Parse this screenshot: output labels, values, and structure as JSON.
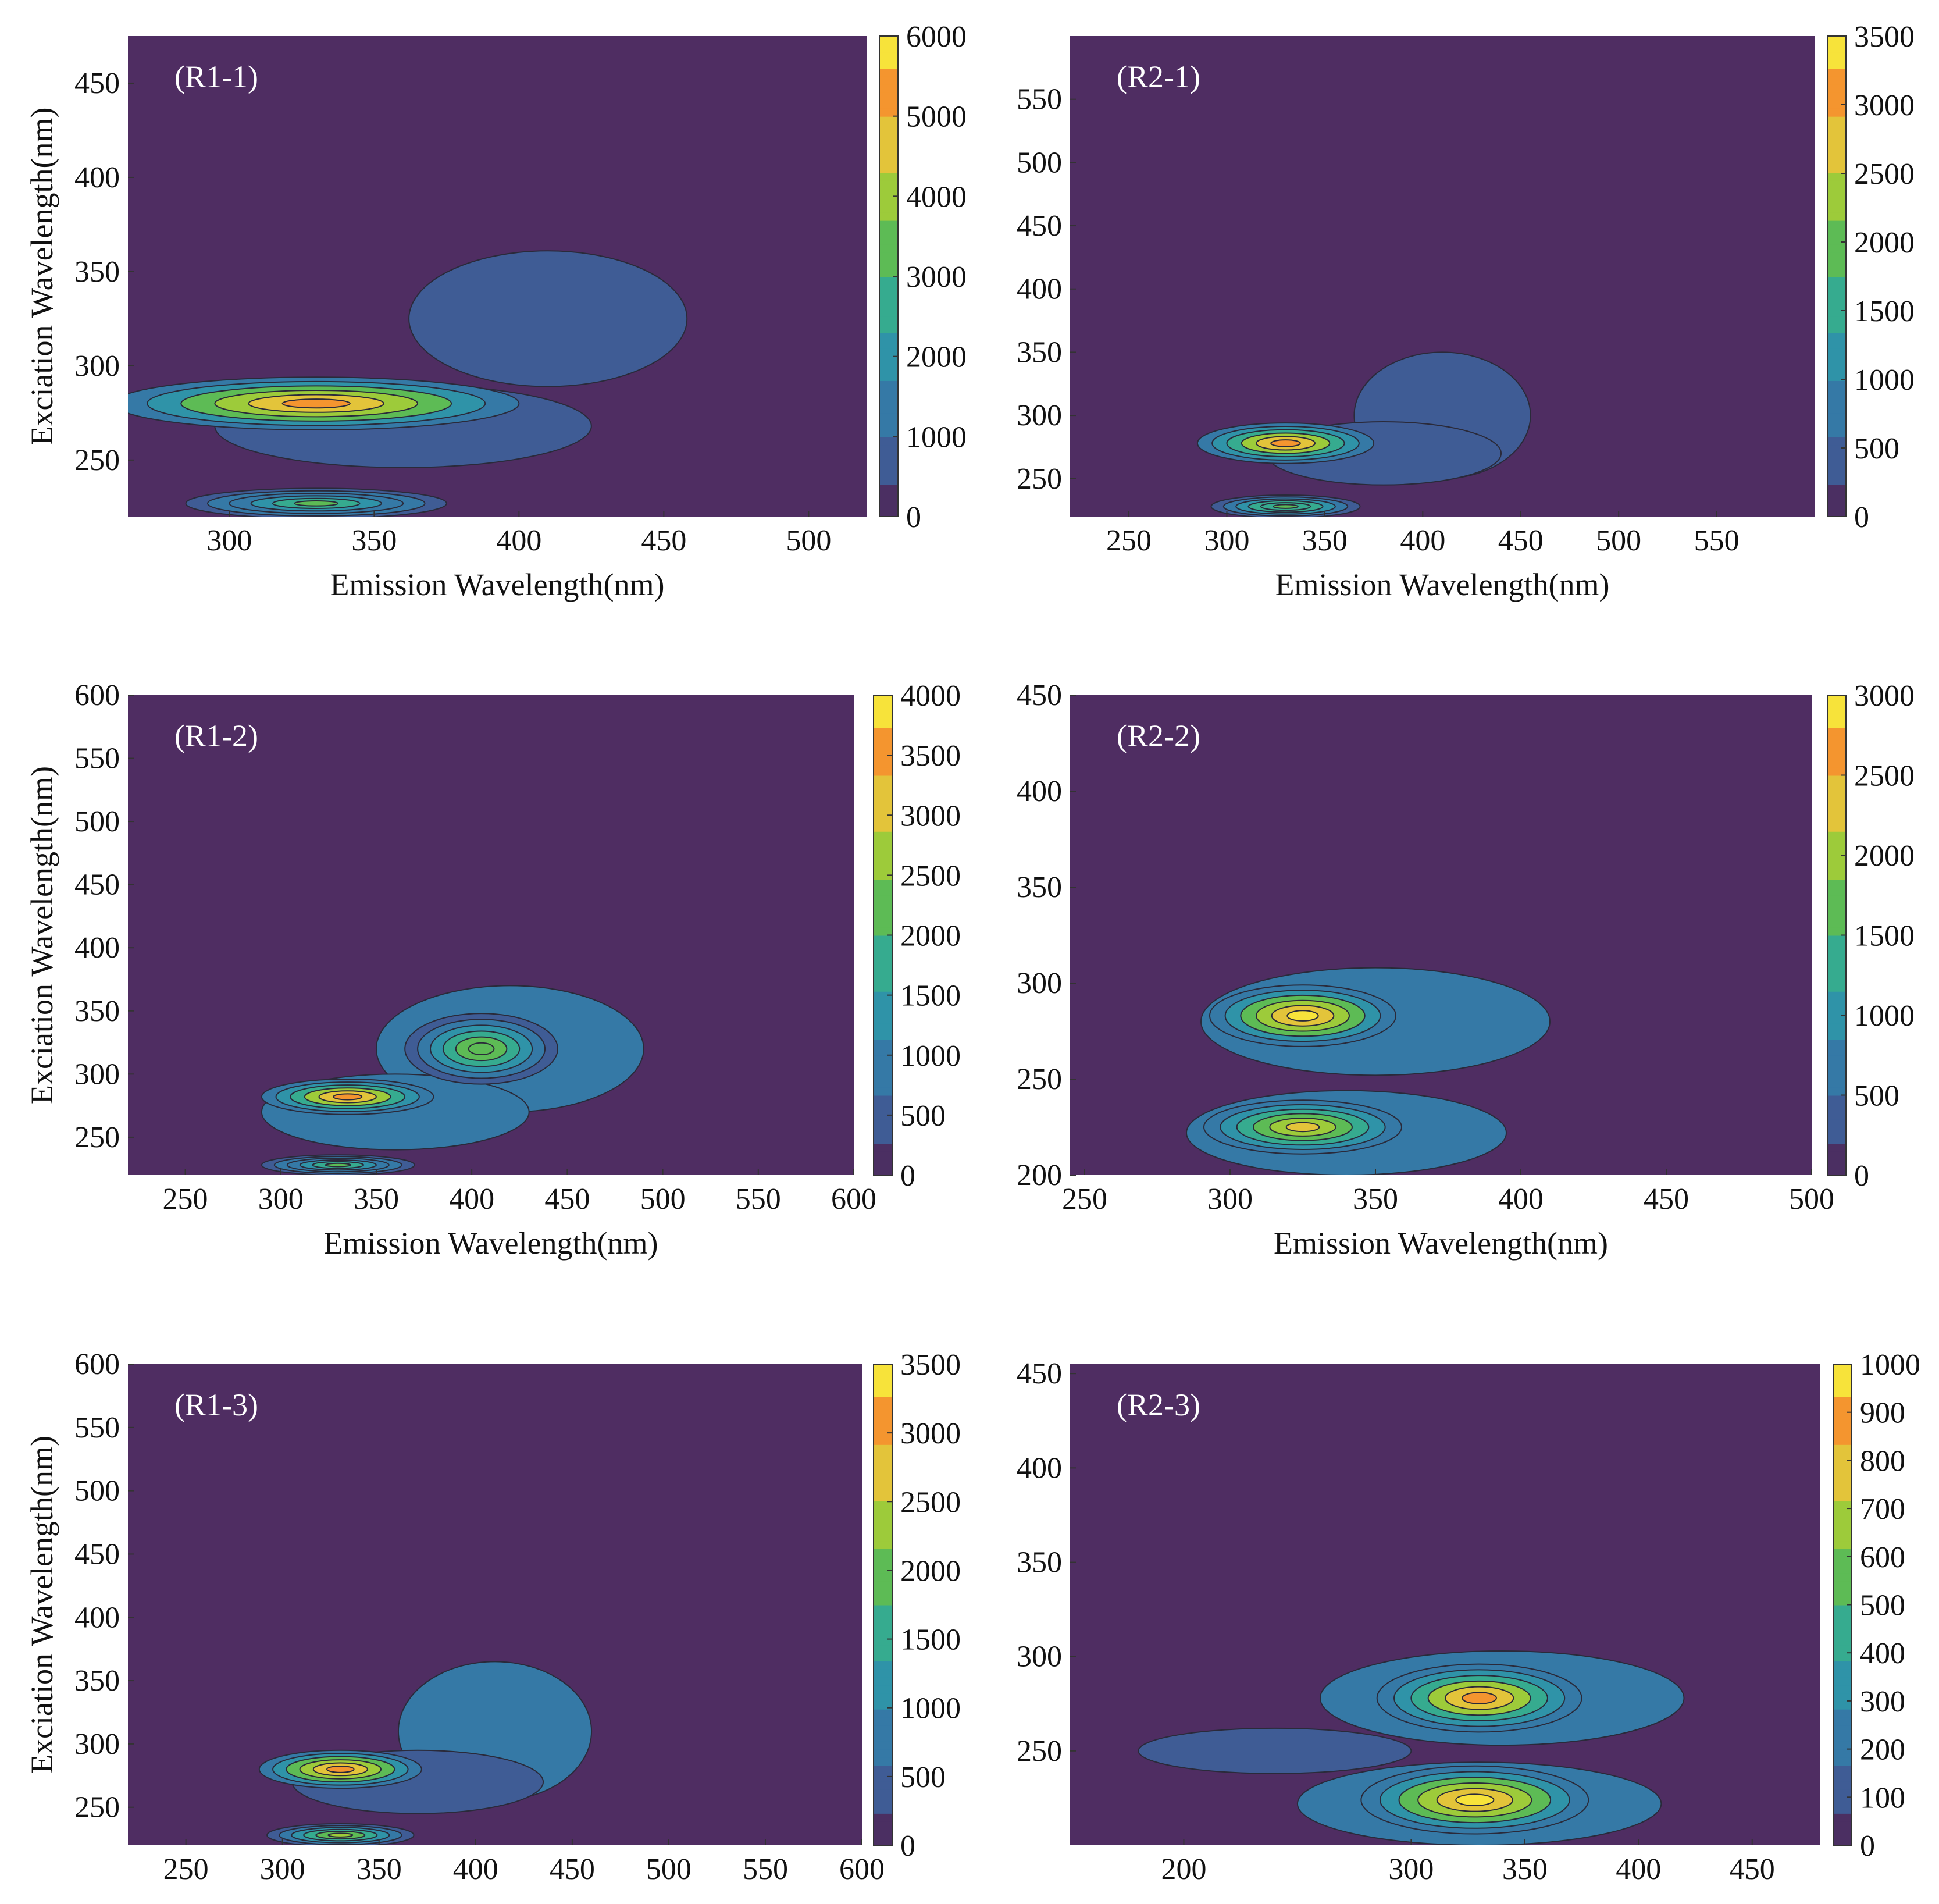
{
  "figure": {
    "colors": {
      "background": "#4f2d62",
      "colormap": [
        "#4b2f62",
        "#3f5c95",
        "#3579a6",
        "#2f93a8",
        "#36ab8f",
        "#5dbb55",
        "#9dcb3a",
        "#e3c43a",
        "#f4952f",
        "#f7e33a"
      ]
    }
  },
  "chart_data": [
    {
      "type": "heatmap",
      "subtype": "contour",
      "panel_label": "(R1-1)",
      "xlabel": "Emission Wavelength(nm)",
      "ylabel": "Exciation Wavelength(nm)",
      "xlim": [
        265,
        520
      ],
      "ylim": [
        220,
        475
      ],
      "xticks": [
        300,
        350,
        400,
        450,
        500
      ],
      "yticks": [
        250,
        300,
        350,
        400,
        450
      ],
      "colorbar": {
        "min": 0,
        "max": 6000,
        "ticks": [
          0,
          1000,
          2000,
          3000,
          4000,
          5000,
          6000
        ]
      },
      "peaks": [
        {
          "em": 330,
          "ex": 280,
          "intensity": 5600,
          "rx": 70,
          "ry": 14
        },
        {
          "em": 330,
          "ex": 227,
          "intensity": 3000,
          "rx": 45,
          "ry": 8
        }
      ],
      "background_regions": [
        {
          "em": 410,
          "ex": 325,
          "intensity": 800,
          "rx": 48,
          "ry": 36
        },
        {
          "em": 360,
          "ex": 268,
          "intensity": 700,
          "rx": 65,
          "ry": 22
        }
      ]
    },
    {
      "type": "heatmap",
      "subtype": "contour",
      "panel_label": "(R2-1)",
      "xlabel": "Emission Wavelength(nm)",
      "ylabel": "",
      "xlim": [
        220,
        600
      ],
      "ylim": [
        220,
        600
      ],
      "xticks": [
        250,
        300,
        350,
        400,
        450,
        500,
        550
      ],
      "yticks": [
        250,
        300,
        350,
        400,
        450,
        500,
        550
      ],
      "colorbar": {
        "min": 0,
        "max": 3500,
        "ticks": [
          0,
          500,
          1000,
          1500,
          2000,
          2500,
          3000,
          3500
        ]
      },
      "peaks": [
        {
          "em": 330,
          "ex": 278,
          "intensity": 3100,
          "rx": 45,
          "ry": 16
        },
        {
          "em": 330,
          "ex": 228,
          "intensity": 2000,
          "rx": 38,
          "ry": 9
        }
      ],
      "background_regions": [
        {
          "em": 410,
          "ex": 300,
          "intensity": 600,
          "rx": 45,
          "ry": 50
        },
        {
          "em": 380,
          "ex": 270,
          "intensity": 500,
          "rx": 60,
          "ry": 25
        }
      ]
    },
    {
      "type": "heatmap",
      "subtype": "contour",
      "panel_label": "(R1-2)",
      "xlabel": "Emission Wavelength(nm)",
      "ylabel": "Exciation Wavelength(nm)",
      "xlim": [
        220,
        600
      ],
      "ylim": [
        220,
        600
      ],
      "xticks": [
        250,
        300,
        350,
        400,
        450,
        500,
        550,
        600
      ],
      "yticks": [
        250,
        300,
        350,
        400,
        450,
        500,
        550,
        600
      ],
      "colorbar": {
        "min": 0,
        "max": 4000,
        "ticks": [
          0,
          500,
          1000,
          1500,
          2000,
          2500,
          3000,
          3500,
          4000
        ]
      },
      "peaks": [
        {
          "em": 335,
          "ex": 282,
          "intensity": 3600,
          "rx": 45,
          "ry": 14
        },
        {
          "em": 405,
          "ex": 320,
          "intensity": 2400,
          "rx": 40,
          "ry": 28
        },
        {
          "em": 330,
          "ex": 228,
          "intensity": 2000,
          "rx": 40,
          "ry": 8
        }
      ],
      "background_regions": [
        {
          "em": 420,
          "ex": 320,
          "intensity": 1200,
          "rx": 70,
          "ry": 50
        },
        {
          "em": 360,
          "ex": 270,
          "intensity": 900,
          "rx": 70,
          "ry": 30
        }
      ]
    },
    {
      "type": "heatmap",
      "subtype": "contour",
      "panel_label": "(R2-2)",
      "xlabel": "Emission Wavelength(nm)",
      "ylabel": "",
      "xlim": [
        245,
        500
      ],
      "ylim": [
        200,
        450
      ],
      "xticks": [
        250,
        300,
        350,
        400,
        450,
        500
      ],
      "yticks": [
        200,
        250,
        300,
        350,
        400,
        450
      ],
      "colorbar": {
        "min": 0,
        "max": 3000,
        "ticks": [
          0,
          500,
          1000,
          1500,
          2000,
          2500,
          3000
        ]
      },
      "peaks": [
        {
          "em": 325,
          "ex": 283,
          "intensity": 2900,
          "rx": 32,
          "ry": 16
        },
        {
          "em": 325,
          "ex": 225,
          "intensity": 2300,
          "rx": 34,
          "ry": 14
        }
      ],
      "background_regions": [
        {
          "em": 350,
          "ex": 280,
          "intensity": 700,
          "rx": 60,
          "ry": 28
        },
        {
          "em": 340,
          "ex": 222,
          "intensity": 650,
          "rx": 55,
          "ry": 22
        }
      ]
    },
    {
      "type": "heatmap",
      "subtype": "contour",
      "panel_label": "(R1-3)",
      "xlabel": "",
      "ylabel": "Exciation Wavelength(nm)",
      "xlim": [
        220,
        600
      ],
      "ylim": [
        220,
        600
      ],
      "xticks": [
        250,
        300,
        350,
        400,
        450,
        500,
        550,
        600
      ],
      "yticks": [
        250,
        300,
        350,
        400,
        450,
        500,
        550,
        600
      ],
      "colorbar": {
        "min": 0,
        "max": 3500,
        "ticks": [
          0,
          500,
          1000,
          1500,
          2000,
          2500,
          3000,
          3500
        ]
      },
      "peaks": [
        {
          "em": 330,
          "ex": 280,
          "intensity": 3300,
          "rx": 42,
          "ry": 15
        },
        {
          "em": 330,
          "ex": 228,
          "intensity": 2200,
          "rx": 38,
          "ry": 9
        }
      ],
      "background_regions": [
        {
          "em": 410,
          "ex": 310,
          "intensity": 650,
          "rx": 50,
          "ry": 55
        },
        {
          "em": 370,
          "ex": 270,
          "intensity": 550,
          "rx": 65,
          "ry": 25
        }
      ]
    },
    {
      "type": "heatmap",
      "subtype": "contour",
      "panel_label": "(R2-3)",
      "xlabel": "",
      "ylabel": "",
      "xlim": [
        150,
        480
      ],
      "ylim": [
        200,
        455
      ],
      "xticks": [
        200,
        300,
        350,
        400,
        450
      ],
      "yticks": [
        250,
        300,
        350,
        400,
        450
      ],
      "colorbar": {
        "min": 0,
        "max": 1000,
        "ticks": [
          0,
          100,
          200,
          300,
          400,
          500,
          600,
          700,
          800,
          900,
          1000
        ]
      },
      "peaks": [
        {
          "em": 330,
          "ex": 278,
          "intensity": 880,
          "rx": 45,
          "ry": 18
        },
        {
          "em": 328,
          "ex": 224,
          "intensity": 950,
          "rx": 50,
          "ry": 18
        }
      ],
      "background_regions": [
        {
          "em": 340,
          "ex": 278,
          "intensity": 200,
          "rx": 80,
          "ry": 25
        },
        {
          "em": 330,
          "ex": 222,
          "intensity": 220,
          "rx": 80,
          "ry": 22
        },
        {
          "em": 240,
          "ex": 250,
          "intensity": 120,
          "rx": 60,
          "ry": 12
        }
      ]
    }
  ]
}
